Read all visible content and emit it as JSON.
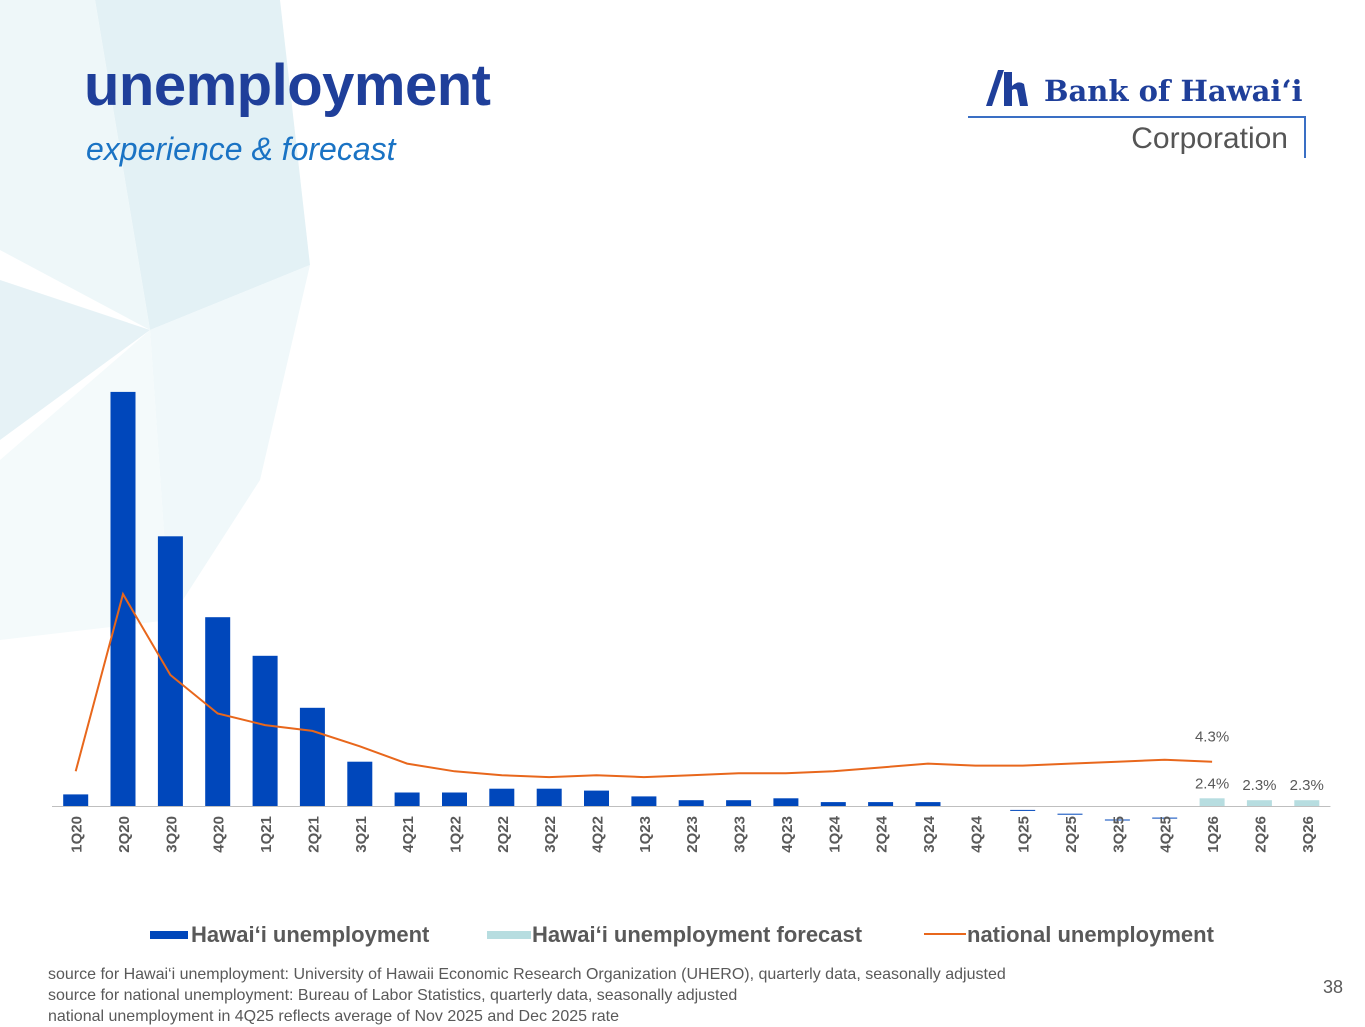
{
  "header": {
    "title": "unemployment",
    "subtitle": "experience & forecast"
  },
  "logo": {
    "name": "Bank of Hawai‘i",
    "corporation": "Corporation"
  },
  "colors": {
    "hawaii": "#0047bb",
    "forecast": "#b7dde0",
    "national": "#e8671c",
    "title": "#1f3f9a",
    "subtitle": "#1a73c4"
  },
  "chart_data": {
    "type": "bar",
    "categories": [
      "1Q20",
      "2Q20",
      "3Q20",
      "4Q20",
      "1Q21",
      "2Q21",
      "3Q21",
      "4Q21",
      "1Q22",
      "2Q22",
      "3Q22",
      "4Q22",
      "1Q23",
      "2Q23",
      "3Q23",
      "4Q23",
      "1Q24",
      "2Q24",
      "3Q24",
      "4Q24",
      "1Q25",
      "2Q25",
      "3Q25",
      "4Q25",
      "1Q26",
      "2Q26",
      "3Q26"
    ],
    "series": [
      {
        "name": "Hawai‘i unemployment",
        "type": "bar",
        "values": [
          2.6,
          23.5,
          16.0,
          11.8,
          9.8,
          7.1,
          4.3,
          2.7,
          2.7,
          2.9,
          2.9,
          2.8,
          2.5,
          2.3,
          2.3,
          2.4,
          2.2,
          2.2,
          2.2,
          2.0,
          1.8,
          1.6,
          1.3,
          1.4,
          null,
          null,
          null
        ]
      },
      {
        "name": "Hawai‘i unemployment forecast",
        "type": "bar",
        "values": [
          null,
          null,
          null,
          null,
          null,
          null,
          null,
          null,
          null,
          null,
          null,
          null,
          null,
          null,
          null,
          null,
          null,
          null,
          null,
          null,
          null,
          null,
          null,
          null,
          2.4,
          2.3,
          2.3
        ]
      },
      {
        "name": "national unemployment",
        "type": "line",
        "values": [
          3.8,
          13.0,
          8.8,
          6.8,
          6.2,
          5.9,
          5.1,
          4.2,
          3.8,
          3.6,
          3.5,
          3.6,
          3.5,
          3.6,
          3.7,
          3.7,
          3.8,
          4.0,
          4.2,
          4.1,
          4.1,
          4.2,
          4.3,
          4.4,
          4.3,
          null,
          null
        ]
      }
    ],
    "data_labels": [
      {
        "text": "4.3%",
        "category": "1Q26",
        "series": "national unemployment"
      },
      {
        "text": "2.4%",
        "category": "1Q26",
        "series": "Hawai‘i unemployment forecast"
      },
      {
        "text": "2.3%",
        "category": "2Q26",
        "series": "Hawai‘i unemployment forecast"
      },
      {
        "text": "2.3%",
        "category": "3Q26",
        "series": "Hawai‘i unemployment forecast"
      }
    ],
    "ylim": [
      2.0,
      25.0
    ],
    "grid": false,
    "legend_position": "bottom"
  },
  "footer": {
    "notes": [
      "source for Hawai‘i unemployment: University of Hawaii Economic Research Organization (UHERO), quarterly data, seasonally adjusted",
      "source for national unemployment: Bureau of Labor Statistics, quarterly data, seasonally adjusted",
      "national unemployment in 4Q25 reflects average of Nov 2025 and Dec 2025 rate"
    ],
    "page_number": "38"
  }
}
